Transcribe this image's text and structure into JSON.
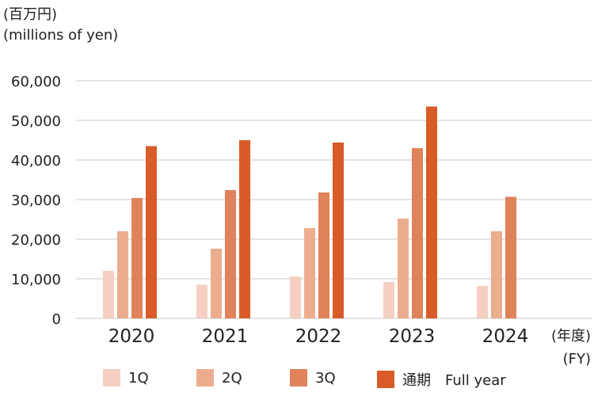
{
  "unit_label_ja": "(百万円)",
  "unit_label_en": "(millions of yen)",
  "axis_suffix_ja": "(年度)",
  "axis_suffix_en": "(FY)",
  "chart_data": {
    "type": "bar",
    "categories": [
      "2020",
      "2021",
      "2022",
      "2023",
      "2024"
    ],
    "ylim": [
      0,
      60000
    ],
    "yticks": [
      "0",
      "10,000",
      "20,000",
      "30,000",
      "40,000",
      "50,000",
      "60,000"
    ],
    "ytick_values": [
      0,
      10000,
      20000,
      30000,
      40000,
      50000,
      60000
    ],
    "grid": true,
    "legend_position": "bottom",
    "series": [
      {
        "name": "1Q",
        "color": "#f5d0c2",
        "values": [
          12000,
          8500,
          10600,
          9200,
          8200
        ]
      },
      {
        "name": "2Q",
        "color": "#ebad8e",
        "values": [
          22000,
          17600,
          22800,
          25200,
          22000
        ]
      },
      {
        "name": "3Q",
        "color": "#e0835b",
        "values": [
          30400,
          32400,
          31800,
          43000,
          30700
        ]
      },
      {
        "name": "通期　Full year",
        "color": "#d95b27",
        "values": [
          43500,
          45000,
          44400,
          53500,
          null
        ]
      }
    ]
  }
}
